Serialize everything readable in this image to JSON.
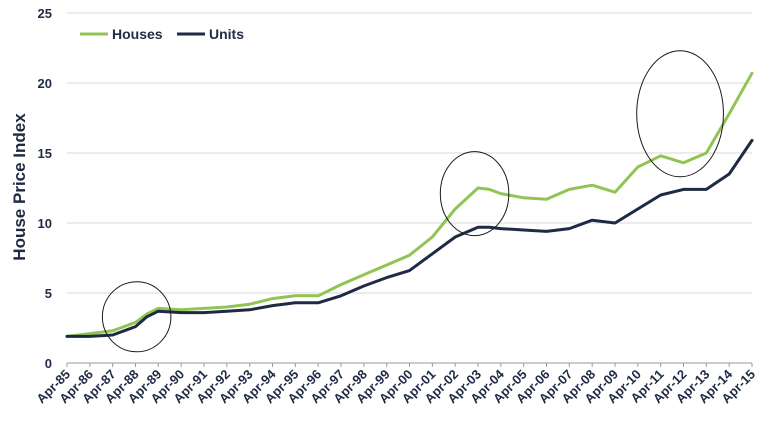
{
  "chart_data": {
    "type": "line",
    "ylabel": "House Price Index",
    "xlabel": "",
    "ylim": [
      0,
      25
    ],
    "yticks": [
      0,
      5,
      10,
      15,
      20,
      25
    ],
    "grid": true,
    "legend_position": "top-left",
    "x_tick_labels": [
      "Apr-85",
      "Apr-86",
      "Apr-87",
      "Apr-88",
      "Apr-89",
      "Apr-90",
      "Apr-91",
      "Apr-92",
      "Apr-93",
      "Apr-94",
      "Apr-95",
      "Apr-96",
      "Apr-97",
      "Apr-98",
      "Apr-99",
      "Apr-00",
      "Apr-01",
      "Apr-02",
      "Apr-03",
      "Apr-04",
      "Apr-05",
      "Apr-06",
      "Apr-07",
      "Apr-08",
      "Apr-09",
      "Apr-10",
      "Apr-11",
      "Apr-12",
      "Apr-13",
      "Apr-14",
      "Apr-15"
    ],
    "x": [
      1985.25,
      1986.25,
      1987.25,
      1988.25,
      1988.75,
      1989.25,
      1990.25,
      1991.25,
      1992.25,
      1993.25,
      1994.25,
      1995.25,
      1996.25,
      1997.25,
      1998.25,
      1999.25,
      2000.25,
      2001.25,
      2002.25,
      2003.25,
      2003.75,
      2004.25,
      2005.25,
      2006.25,
      2007.25,
      2008.25,
      2009.25,
      2010.25,
      2011.25,
      2012.25,
      2013.25,
      2014.25,
      2015.25
    ],
    "series": [
      {
        "name": "Houses",
        "color": "#92c453",
        "values": [
          1.9,
          2.1,
          2.3,
          2.9,
          3.5,
          3.9,
          3.8,
          3.9,
          4.0,
          4.2,
          4.6,
          4.8,
          4.8,
          5.6,
          6.3,
          7.0,
          7.7,
          9.0,
          11.0,
          12.5,
          12.4,
          12.1,
          11.8,
          11.7,
          12.4,
          12.7,
          12.2,
          14.0,
          14.8,
          14.3,
          15.0,
          17.8,
          20.7
        ]
      },
      {
        "name": "Units",
        "color": "#1f2a44",
        "values": [
          1.9,
          1.9,
          2.0,
          2.6,
          3.3,
          3.7,
          3.6,
          3.6,
          3.7,
          3.8,
          4.1,
          4.3,
          4.3,
          4.8,
          5.5,
          6.1,
          6.6,
          7.8,
          9.0,
          9.7,
          9.7,
          9.6,
          9.5,
          9.4,
          9.6,
          10.2,
          10.0,
          11.0,
          12.0,
          12.4,
          12.4,
          13.5,
          15.9
        ]
      }
    ],
    "annotations": [
      {
        "type": "circle",
        "label": "",
        "cx": 1988.3,
        "cy": 3.3,
        "rx": 1.5,
        "ry": 2.5
      },
      {
        "type": "circle",
        "label": "",
        "cx": 2003.1,
        "cy": 12.1,
        "rx": 1.5,
        "ry": 3.0
      },
      {
        "type": "circle",
        "label": "",
        "cx": 2012.1,
        "cy": 17.8,
        "rx": 1.9,
        "ry": 4.5
      }
    ]
  }
}
